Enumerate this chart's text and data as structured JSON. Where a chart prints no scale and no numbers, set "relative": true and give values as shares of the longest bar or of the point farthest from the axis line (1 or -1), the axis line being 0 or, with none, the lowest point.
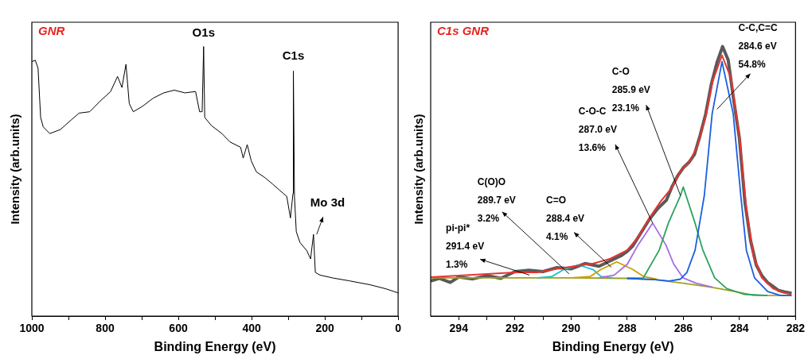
{
  "chart_data": [
    {
      "type": "line",
      "title": "GNR",
      "xlabel": "Binding Energy (eV)",
      "ylabel": "Intensity (arb.units)",
      "relative": true,
      "xlim": [
        1000,
        0
      ],
      "xticks": [
        1000,
        {
          "value": 900,
          "label": null
        },
        800,
        {
          "value": 700,
          "label": null
        },
        600,
        {
          "value": 500,
          "label": null
        },
        400,
        {
          "value": 300,
          "label": null
        },
        200,
        {
          "value": 100,
          "label": null
        },
        0
      ],
      "annotations": [
        {
          "text": "O1s",
          "x": 531,
          "y": 1.0
        },
        {
          "text": "C1s",
          "x": 286,
          "y": 0.909
        },
        {
          "text": "Mo 3d",
          "x": 231,
          "y": 0.303
        }
      ],
      "series": [
        {
          "color": "#000000",
          "x": [
            1000,
            990.6,
            983,
            976,
            969,
            951,
            922,
            893,
            871,
            842,
            813,
            785,
            766,
            754,
            743,
            734,
            723,
            698,
            669,
            640,
            611,
            582,
            553,
            542,
            535,
            531,
            528,
            510,
            481,
            459,
            430,
            423,
            412,
            401,
            387,
            365,
            343,
            322,
            304,
            294,
            287,
            286,
            283,
            278,
            268,
            249,
            239,
            231,
            226,
            213,
            177,
            134,
            76,
            33,
            0
          ],
          "values": [
            0.944,
            0.949,
            0.919,
            0.737,
            0.702,
            0.677,
            0.692,
            0.727,
            0.753,
            0.758,
            0.798,
            0.833,
            0.889,
            0.848,
            0.934,
            0.788,
            0.758,
            0.778,
            0.808,
            0.828,
            0.838,
            0.828,
            0.833,
            0.758,
            0.758,
            1.0,
            0.737,
            0.707,
            0.677,
            0.646,
            0.626,
            0.586,
            0.636,
            0.576,
            0.535,
            0.515,
            0.49,
            0.465,
            0.444,
            0.364,
            0.455,
            0.909,
            0.444,
            0.313,
            0.273,
            0.242,
            0.212,
            0.303,
            0.162,
            0.152,
            0.141,
            0.131,
            0.116,
            0.101,
            0.086
          ]
        }
      ]
    },
    {
      "type": "line",
      "title": "C1s GNR",
      "xlabel": "Binding Energy (eV)",
      "ylabel": "Intensity (arb.units)",
      "relative": true,
      "xlim": [
        295,
        282
      ],
      "xticks": [
        294,
        {
          "value": 293,
          "label": null
        },
        292,
        {
          "value": 291,
          "label": null
        },
        290,
        {
          "value": 289,
          "label": null
        },
        288,
        {
          "value": 287,
          "label": null
        },
        286,
        {
          "value": 285,
          "label": null
        },
        284,
        {
          "value": 283,
          "label": null
        },
        282
      ],
      "annotations": [
        {
          "text": "C-C,C=C\n284.6 eV\n54.8%",
          "x": 284.8,
          "y": 0.767
        },
        {
          "text": "C-O\n285.9 eV\n23.1%",
          "x": 286.1,
          "y": 0.447
        },
        {
          "text": "C-O-C\n287.0 eV\n13.6%",
          "x": 287.09,
          "y": 0.345
        },
        {
          "text": "C=O\n288.4 eV\n4.1%",
          "x": 288.56,
          "y": 0.181
        },
        {
          "text": "C(O)O\n289.7 eV\n3.2%",
          "x": 290.07,
          "y": 0.157
        },
        {
          "text": "pi-pi*\n291.4 eV\n1.3%",
          "x": 291.48,
          "y": 0.152
        }
      ],
      "series": [
        {
          "color": "#5a5a5a",
          "x": [
            295,
            294.7,
            294.3,
            294,
            293.5,
            293,
            292.5,
            292,
            291.5,
            291,
            290.5,
            290,
            289.5,
            289,
            288.5,
            288.2,
            288,
            287.8,
            287.5,
            287.2,
            286.9,
            286.6,
            286.4,
            286.2,
            286,
            285.8,
            285.6,
            285.4,
            285.2,
            285,
            284.8,
            284.6,
            284.4,
            284.2,
            284,
            283.8,
            283.6,
            283.4,
            283.2,
            283,
            282.8,
            282.6,
            282.4,
            282.14
          ],
          "values": [
            0.13,
            0.14,
            0.125,
            0.145,
            0.138,
            0.15,
            0.14,
            0.165,
            0.17,
            0.165,
            0.18,
            0.175,
            0.195,
            0.185,
            0.21,
            0.225,
            0.24,
            0.26,
            0.31,
            0.36,
            0.4,
            0.43,
            0.48,
            0.52,
            0.55,
            0.57,
            0.6,
            0.67,
            0.75,
            0.86,
            0.94,
            1.0,
            0.95,
            0.8,
            0.66,
            0.42,
            0.28,
            0.19,
            0.15,
            0.125,
            0.11,
            0.095,
            0.09,
            0.085
          ]
        },
        {
          "color": "#a0a020",
          "x": [
            295,
            290,
            288,
            287,
            286,
            285,
            284,
            283.5,
            282.14
          ],
          "values": [
            0.142,
            0.142,
            0.14,
            0.135,
            0.122,
            0.107,
            0.088,
            0.077,
            0.076
          ]
        },
        {
          "color": "#1fc1c9",
          "x": [
            291.2,
            290.68,
            290.25,
            289.74,
            289.22,
            288.93,
            288.5
          ],
          "values": [
            0.142,
            0.147,
            0.173,
            0.19,
            0.173,
            0.147,
            0.142
          ]
        },
        {
          "color": "#c9a000",
          "x": [
            290,
            289.31,
            288.93,
            288.37,
            287.8,
            287.42,
            286.95
          ],
          "values": [
            0.142,
            0.147,
            0.173,
            0.201,
            0.173,
            0.147,
            0.137
          ]
        },
        {
          "color": "#a36ee0",
          "x": [
            289,
            288.46,
            287.99,
            287.61,
            287.09,
            286.62,
            286.34,
            286.01,
            285.54,
            284.97
          ],
          "values": [
            0.142,
            0.152,
            0.193,
            0.264,
            0.345,
            0.264,
            0.193,
            0.142,
            0.122,
            0.107
          ]
        },
        {
          "color": "#2ca25f",
          "x": [
            288,
            287.42,
            286.86,
            286.53,
            286.1,
            286,
            285.58,
            285.3,
            284.88,
            284.45,
            283.84,
            283
          ],
          "values": [
            0.14,
            0.142,
            0.244,
            0.345,
            0.447,
            0.479,
            0.345,
            0.244,
            0.142,
            0.102,
            0.081,
            0.076
          ]
        },
        {
          "color": "#1a5fe0",
          "x": [
            288,
            287,
            286.5,
            286.1,
            285.87,
            285.58,
            285.25,
            284.97,
            284.62,
            284.22,
            283.95,
            283.75,
            283.46,
            282.99,
            282.52,
            282.14
          ],
          "values": [
            0.14,
            0.135,
            0.13,
            0.137,
            0.162,
            0.244,
            0.447,
            0.751,
            0.944,
            0.751,
            0.447,
            0.244,
            0.142,
            0.091,
            0.076,
            0.076
          ]
        },
        {
          "color": "#e8332f",
          "x": [
            295,
            292,
            291.2,
            290.5,
            289.7,
            289.2,
            288.6,
            288,
            287.6,
            287.2,
            286.8,
            286.4,
            286.1,
            285.8,
            285.5,
            285.2,
            284.95,
            284.62,
            284.3,
            284,
            283.75,
            283.5,
            283.2,
            282.8,
            282.4,
            282.14
          ],
          "values": [
            0.144,
            0.162,
            0.162,
            0.175,
            0.188,
            0.195,
            0.213,
            0.244,
            0.294,
            0.365,
            0.426,
            0.477,
            0.538,
            0.569,
            0.629,
            0.741,
            0.873,
            0.967,
            0.883,
            0.67,
            0.396,
            0.223,
            0.142,
            0.102,
            0.086,
            0.081
          ]
        }
      ]
    }
  ]
}
